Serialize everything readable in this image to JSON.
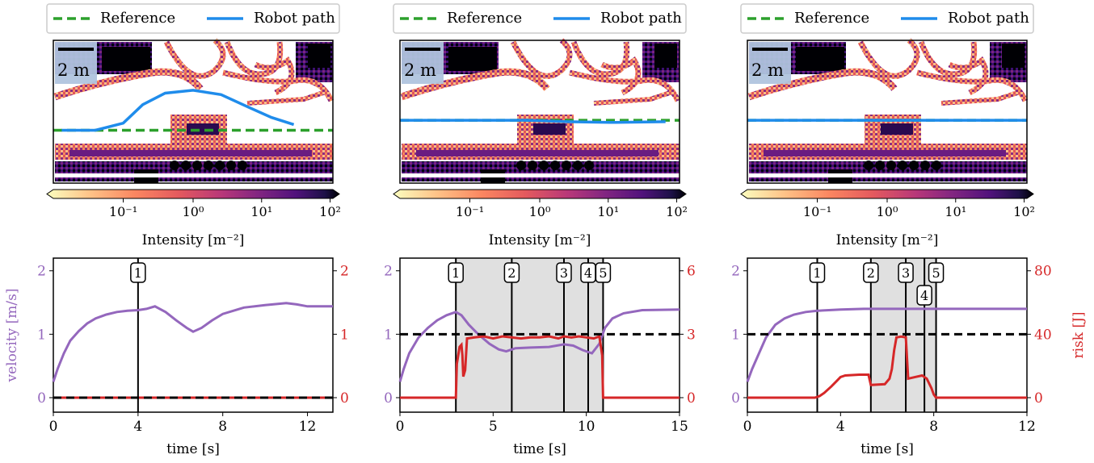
{
  "chart_data": [
    {
      "panel": "left",
      "type": "heatmap",
      "legend": [
        {
          "label": "Reference",
          "color": "#2ca02c",
          "style": "dashed"
        },
        {
          "label": "Robot path",
          "color": "#1f8ceb",
          "style": "solid"
        }
      ],
      "scale_bar_label": "2 m",
      "colorbar": {
        "label": "Intensity [m⁻²]",
        "scale": "log",
        "ticks": [
          "10⁻¹",
          "10⁰",
          "10¹",
          "10²"
        ],
        "colormap": "magma_r"
      },
      "reference_y": 0.63,
      "robot_path": [
        [
          0.03,
          0.63
        ],
        [
          0.15,
          0.63
        ],
        [
          0.25,
          0.58
        ],
        [
          0.32,
          0.45
        ],
        [
          0.4,
          0.37
        ],
        [
          0.5,
          0.35
        ],
        [
          0.6,
          0.38
        ],
        [
          0.7,
          0.47
        ],
        [
          0.78,
          0.54
        ],
        [
          0.86,
          0.59
        ]
      ]
    },
    {
      "panel": "middle",
      "type": "heatmap",
      "legend": [
        {
          "label": "Reference",
          "color": "#2ca02c",
          "style": "dashed"
        },
        {
          "label": "Robot path",
          "color": "#1f8ceb",
          "style": "solid"
        }
      ],
      "scale_bar_label": "2 m",
      "colorbar": {
        "label": "Intensity [m⁻²]",
        "scale": "log",
        "ticks": [
          "10⁻¹",
          "10⁰",
          "10¹",
          "10²"
        ],
        "colormap": "magma_r"
      },
      "reference_y": 0.56,
      "robot_path": [
        [
          0.0,
          0.56
        ],
        [
          0.45,
          0.56
        ],
        [
          0.6,
          0.57
        ],
        [
          0.75,
          0.575
        ],
        [
          0.95,
          0.57
        ]
      ]
    },
    {
      "panel": "right",
      "type": "heatmap",
      "legend": [
        {
          "label": "Reference",
          "color": "#2ca02c",
          "style": "dashed"
        },
        {
          "label": "Robot path",
          "color": "#1f8ceb",
          "style": "solid"
        }
      ],
      "scale_bar_label": "2 m",
      "colorbar": {
        "label": "Intensity [m⁻²]",
        "scale": "log",
        "ticks": [
          "10⁻¹",
          "10⁰",
          "10¹",
          "10²"
        ],
        "colormap": "magma_r"
      },
      "reference_y": 0.56,
      "robot_path": [
        [
          0.0,
          0.56
        ],
        [
          1.0,
          0.56
        ]
      ]
    },
    {
      "panel": "left",
      "type": "line",
      "xlabel": "time [s]",
      "ylabel_left": "velocity [m/s]",
      "ylabel_right": "",
      "xlim": [
        0,
        13.2
      ],
      "xticks": [
        0,
        4,
        8,
        12
      ],
      "ylim_left": [
        0,
        2.2
      ],
      "yticks_left": [
        0,
        1,
        2
      ],
      "ylim_right": [
        0,
        2.2
      ],
      "yticks_right": [
        0,
        1,
        2
      ],
      "threshold_right": 0,
      "markers": [
        {
          "label": "1",
          "t": 4
        }
      ],
      "shaded_interval": null,
      "velocity": [
        [
          0,
          0.25
        ],
        [
          0.2,
          0.45
        ],
        [
          0.5,
          0.7
        ],
        [
          0.8,
          0.9
        ],
        [
          1.2,
          1.05
        ],
        [
          1.6,
          1.17
        ],
        [
          2,
          1.25
        ],
        [
          2.5,
          1.31
        ],
        [
          3,
          1.35
        ],
        [
          3.5,
          1.37
        ],
        [
          4,
          1.38
        ],
        [
          4.4,
          1.4
        ],
        [
          4.8,
          1.44
        ],
        [
          5.3,
          1.35
        ],
        [
          5.8,
          1.22
        ],
        [
          6.3,
          1.1
        ],
        [
          6.6,
          1.04
        ],
        [
          7,
          1.1
        ],
        [
          7.5,
          1.22
        ],
        [
          8,
          1.32
        ],
        [
          9,
          1.42
        ],
        [
          10,
          1.46
        ],
        [
          11,
          1.49
        ],
        [
          11.5,
          1.47
        ],
        [
          12,
          1.44
        ],
        [
          13.2,
          1.44
        ]
      ],
      "risk": [
        [
          0,
          0
        ],
        [
          13.2,
          0
        ]
      ]
    },
    {
      "panel": "middle",
      "type": "line",
      "xlabel": "time [s]",
      "ylabel_left": "",
      "ylabel_right": "",
      "xlim": [
        0,
        15
      ],
      "xticks": [
        0,
        5,
        10,
        15
      ],
      "ylim_left": [
        0,
        2.2
      ],
      "yticks_left": [
        0,
        1,
        2
      ],
      "ylim_right": [
        0,
        6.6
      ],
      "yticks_right": [
        0,
        3,
        6
      ],
      "threshold_right": 3,
      "markers": [
        {
          "label": "1",
          "t": 3
        },
        {
          "label": "2",
          "t": 6
        },
        {
          "label": "3",
          "t": 8.8
        },
        {
          "label": "4",
          "t": 10.1
        },
        {
          "label": "5",
          "t": 10.9
        }
      ],
      "shaded_interval": [
        3,
        10.9
      ],
      "velocity": [
        [
          0,
          0.25
        ],
        [
          0.2,
          0.45
        ],
        [
          0.5,
          0.7
        ],
        [
          1,
          0.95
        ],
        [
          1.5,
          1.1
        ],
        [
          2,
          1.22
        ],
        [
          2.5,
          1.3
        ],
        [
          3,
          1.35
        ],
        [
          3.3,
          1.3
        ],
        [
          3.7,
          1.15
        ],
        [
          4.2,
          1.0
        ],
        [
          4.8,
          0.85
        ],
        [
          5.3,
          0.76
        ],
        [
          5.7,
          0.73
        ],
        [
          6.2,
          0.78
        ],
        [
          7,
          0.79
        ],
        [
          8,
          0.8
        ],
        [
          8.8,
          0.84
        ],
        [
          9.3,
          0.82
        ],
        [
          9.8,
          0.75
        ],
        [
          10.3,
          0.7
        ],
        [
          10.7,
          0.85
        ],
        [
          11,
          1.1
        ],
        [
          11.4,
          1.25
        ],
        [
          12,
          1.33
        ],
        [
          13,
          1.38
        ],
        [
          15,
          1.39
        ]
      ],
      "risk": [
        [
          0,
          0
        ],
        [
          3,
          0
        ],
        [
          3.05,
          1.6
        ],
        [
          3.2,
          2.4
        ],
        [
          3.3,
          2.5
        ],
        [
          3.35,
          2.0
        ],
        [
          3.4,
          1.0
        ],
        [
          3.5,
          1.3
        ],
        [
          3.6,
          2.8
        ],
        [
          4,
          2.85
        ],
        [
          4.5,
          2.9
        ],
        [
          5,
          2.8
        ],
        [
          5.5,
          2.9
        ],
        [
          6,
          2.85
        ],
        [
          6.5,
          2.8
        ],
        [
          7,
          2.85
        ],
        [
          7.5,
          2.85
        ],
        [
          8,
          2.9
        ],
        [
          8.5,
          2.8
        ],
        [
          8.8,
          2.9
        ],
        [
          9.2,
          2.85
        ],
        [
          9.6,
          2.9
        ],
        [
          10,
          2.85
        ],
        [
          10.4,
          2.8
        ],
        [
          10.7,
          2.9
        ],
        [
          10.85,
          2.0
        ],
        [
          10.9,
          0
        ],
        [
          15,
          0
        ]
      ]
    },
    {
      "panel": "right",
      "type": "line",
      "xlabel": "time [s]",
      "ylabel_left": "",
      "ylabel_right": "risk [J]",
      "xlim": [
        0,
        12
      ],
      "xticks": [
        0,
        4,
        8,
        12
      ],
      "ylim_left": [
        0,
        2.2
      ],
      "yticks_left": [
        0,
        1,
        2
      ],
      "ylim_right": [
        0,
        88
      ],
      "yticks_right": [
        0,
        40,
        80
      ],
      "threshold_right": 40,
      "markers": [
        {
          "label": "1",
          "t": 3
        },
        {
          "label": "2",
          "t": 5.3
        },
        {
          "label": "3",
          "t": 6.8
        },
        {
          "label": "4",
          "t": 7.6
        },
        {
          "label": "5",
          "t": 8.1
        }
      ],
      "shaded_interval": [
        5.3,
        8.1
      ],
      "velocity": [
        [
          0,
          0.25
        ],
        [
          0.2,
          0.45
        ],
        [
          0.5,
          0.7
        ],
        [
          0.8,
          0.95
        ],
        [
          1.2,
          1.15
        ],
        [
          1.6,
          1.25
        ],
        [
          2,
          1.31
        ],
        [
          2.5,
          1.35
        ],
        [
          3,
          1.37
        ],
        [
          3.5,
          1.38
        ],
        [
          4,
          1.39
        ],
        [
          5,
          1.4
        ],
        [
          6,
          1.4
        ],
        [
          8,
          1.4
        ],
        [
          12,
          1.4
        ]
      ],
      "risk": [
        [
          0,
          0
        ],
        [
          2.9,
          0
        ],
        [
          3.1,
          1
        ],
        [
          3.3,
          3
        ],
        [
          3.6,
          7
        ],
        [
          3.8,
          10
        ],
        [
          4,
          13
        ],
        [
          4.2,
          14
        ],
        [
          4.8,
          14.5
        ],
        [
          5.2,
          14.5
        ],
        [
          5.3,
          8
        ],
        [
          5.9,
          8.5
        ],
        [
          6.1,
          12
        ],
        [
          6.2,
          18
        ],
        [
          6.3,
          30
        ],
        [
          6.4,
          38
        ],
        [
          6.6,
          38.5
        ],
        [
          6.8,
          38
        ],
        [
          6.9,
          12
        ],
        [
          7.2,
          13
        ],
        [
          7.5,
          14
        ],
        [
          7.7,
          12
        ],
        [
          7.9,
          6
        ],
        [
          8.0,
          2
        ],
        [
          8.1,
          0
        ],
        [
          12,
          0
        ]
      ]
    }
  ]
}
